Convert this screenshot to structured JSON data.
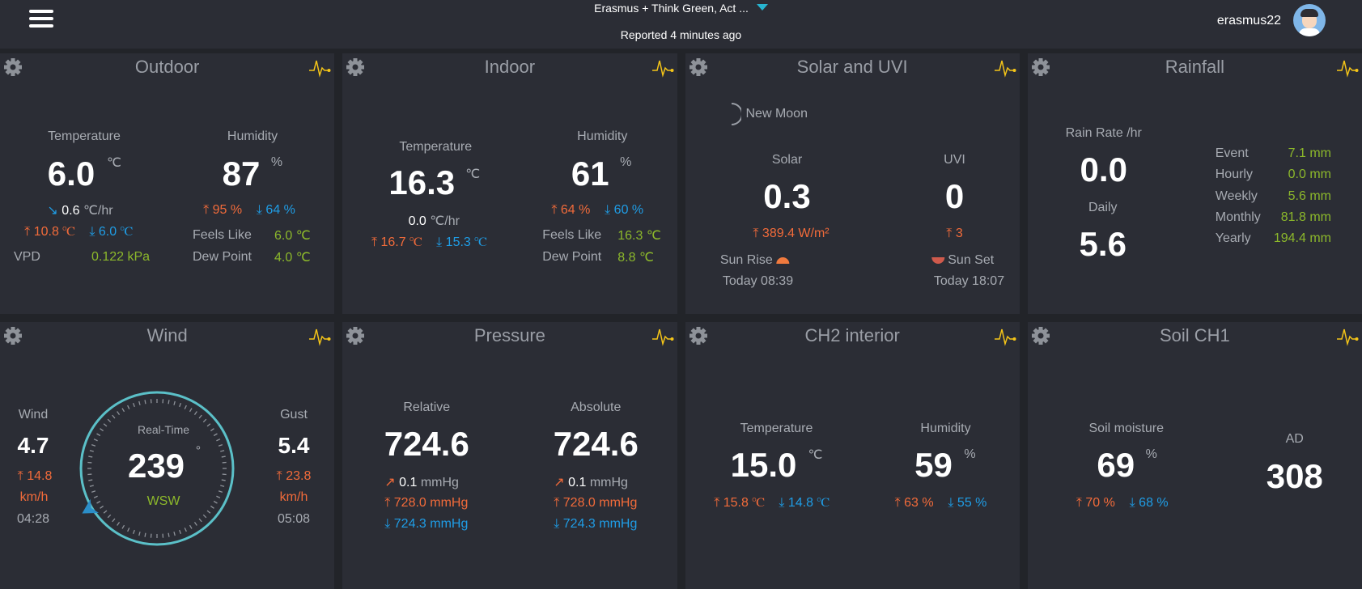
{
  "header": {
    "station": "Erasmus + Think Green, Act ...",
    "reported": "Reported 4 minutes ago",
    "username": "erasmus22"
  },
  "colors": {
    "max": "#f26b3a",
    "min": "#1f9de6",
    "value": "#8cb82b",
    "gauge": "#5bc0c8",
    "pulse": "#f5c518"
  },
  "outdoor": {
    "title": "Outdoor",
    "temp_label": "Temperature",
    "temp": "6.0",
    "temp_unit": "℃",
    "trend": "0.6",
    "trend_unit": "℃/hr",
    "temp_max": "10.8 ℃",
    "temp_min": "6.0 ℃",
    "vpd_label": "VPD",
    "vpd": "0.122 kPa",
    "hum_label": "Humidity",
    "hum": "87",
    "hum_unit": "%",
    "hum_max": "95 %",
    "hum_min": "64 %",
    "feels_label": "Feels Like",
    "feels": "6.0 ℃",
    "dew_label": "Dew Point",
    "dew": "4.0 ℃"
  },
  "indoor": {
    "title": "Indoor",
    "temp_label": "Temperature",
    "temp": "16.3",
    "temp_unit": "℃",
    "trend": "0.0",
    "trend_unit": "℃/hr",
    "temp_max": "16.7 ℃",
    "temp_min": "15.3 ℃",
    "hum_label": "Humidity",
    "hum": "61",
    "hum_unit": "%",
    "hum_max": "64 %",
    "hum_min": "60 %",
    "feels_label": "Feels Like",
    "feels": "16.3 ℃",
    "dew_label": "Dew Point",
    "dew": "8.8 ℃"
  },
  "solar": {
    "title": "Solar and UVI",
    "moon": "New Moon",
    "solar_label": "Solar",
    "solar": "0.3",
    "solar_max": "389.4 W/m²",
    "uvi_label": "UVI",
    "uvi": "0",
    "uvi_max": "3",
    "sunrise_label": "Sun Rise",
    "sunrise": "Today 08:39",
    "sunset_label": "Sun Set",
    "sunset": "Today 18:07"
  },
  "rain": {
    "title": "Rainfall",
    "rate_label": "Rain Rate /hr",
    "rate": "0.0",
    "daily_label": "Daily",
    "daily": "5.6",
    "rows": [
      {
        "label": "Event",
        "value": "7.1 mm"
      },
      {
        "label": "Hourly",
        "value": "0.0 mm"
      },
      {
        "label": "Weekly",
        "value": "5.6 mm"
      },
      {
        "label": "Monthly",
        "value": "81.8 mm"
      },
      {
        "label": "Yearly",
        "value": "194.4 mm"
      }
    ]
  },
  "wind": {
    "title": "Wind",
    "wind_label": "Wind",
    "wind": "4.7",
    "wind_max": "14.8",
    "wind_unit": "km/h",
    "wind_time": "04:28",
    "gust_label": "Gust",
    "gust": "5.4",
    "gust_max": "23.8",
    "gust_unit": "km/h",
    "gust_time": "05:08",
    "rt_label": "Real-Time",
    "direction": "239",
    "deg": "°",
    "direction_name": "WSW",
    "direction_deg": 239
  },
  "pressure": {
    "title": "Pressure",
    "rel_label": "Relative",
    "rel": "724.6",
    "rel_trend": "0.1",
    "rel_trend_unit": "mmHg",
    "rel_max": "728.0 mmHg",
    "rel_min": "724.3 mmHg",
    "abs_label": "Absolute",
    "abs": "724.6",
    "abs_trend": "0.1",
    "abs_trend_unit": "mmHg",
    "abs_max": "728.0 mmHg",
    "abs_min": "724.3 mmHg"
  },
  "ch2": {
    "title": "CH2 interior",
    "temp_label": "Temperature",
    "temp": "15.0",
    "temp_unit": "℃",
    "temp_max": "15.8 ℃",
    "temp_min": "14.8 ℃",
    "hum_label": "Humidity",
    "hum": "59",
    "hum_unit": "%",
    "hum_max": "63 %",
    "hum_min": "55 %"
  },
  "soil": {
    "title": "Soil CH1",
    "moist_label": "Soil moisture",
    "moist": "69",
    "moist_unit": "%",
    "moist_max": "70 %",
    "moist_min": "68 %",
    "ad_label": "AD",
    "ad": "308"
  },
  "arrows": {
    "up": "⤒",
    "down": "⤓"
  }
}
